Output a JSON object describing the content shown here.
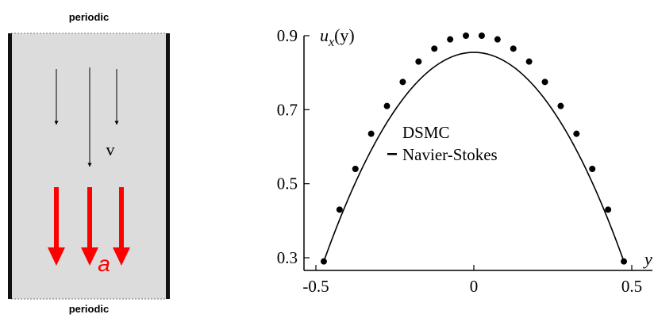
{
  "schematic": {
    "top_label": "periodic",
    "bottom_label": "periodic",
    "velocity_label": "v",
    "accel_label": "a",
    "colors": {
      "channel_fill": "#dcdcdc",
      "wall": "#111111",
      "accel_arrow": "#ff0000",
      "velocity_arrow": "#000000"
    }
  },
  "chart_data": {
    "type": "scatter",
    "title": "",
    "ylabel_math": {
      "base": "u",
      "sub": "x",
      "arg": "(y)"
    },
    "xlabel": "y",
    "xlim": [
      -0.5,
      0.5
    ],
    "ylim": [
      0.3,
      0.9
    ],
    "xticks": [
      "-0.5",
      "0",
      "0.5"
    ],
    "yticks": [
      "0.9",
      "0.7",
      "0.5",
      "0.3"
    ],
    "legend": {
      "placement": "center",
      "entries": [
        "DSMC",
        "Navier-Stokes"
      ]
    },
    "series": [
      {
        "name": "DSMC",
        "kind": "points",
        "x": [
          -0.475,
          -0.425,
          -0.375,
          -0.325,
          -0.275,
          -0.225,
          -0.175,
          -0.125,
          -0.075,
          -0.025,
          0.025,
          0.075,
          0.125,
          0.175,
          0.225,
          0.275,
          0.325,
          0.375,
          0.425,
          0.475
        ],
        "y": [
          0.29,
          0.43,
          0.54,
          0.635,
          0.71,
          0.775,
          0.83,
          0.865,
          0.89,
          0.9,
          0.9,
          0.89,
          0.865,
          0.83,
          0.775,
          0.71,
          0.635,
          0.54,
          0.43,
          0.29
        ]
      },
      {
        "name": "Navier-Stokes",
        "kind": "line",
        "profile": "parabola",
        "vertex": [
          0,
          0.855
        ],
        "x": [
          -0.475,
          0,
          0.475
        ],
        "y": [
          0.29,
          0.855,
          0.29
        ]
      }
    ],
    "grid": false
  }
}
